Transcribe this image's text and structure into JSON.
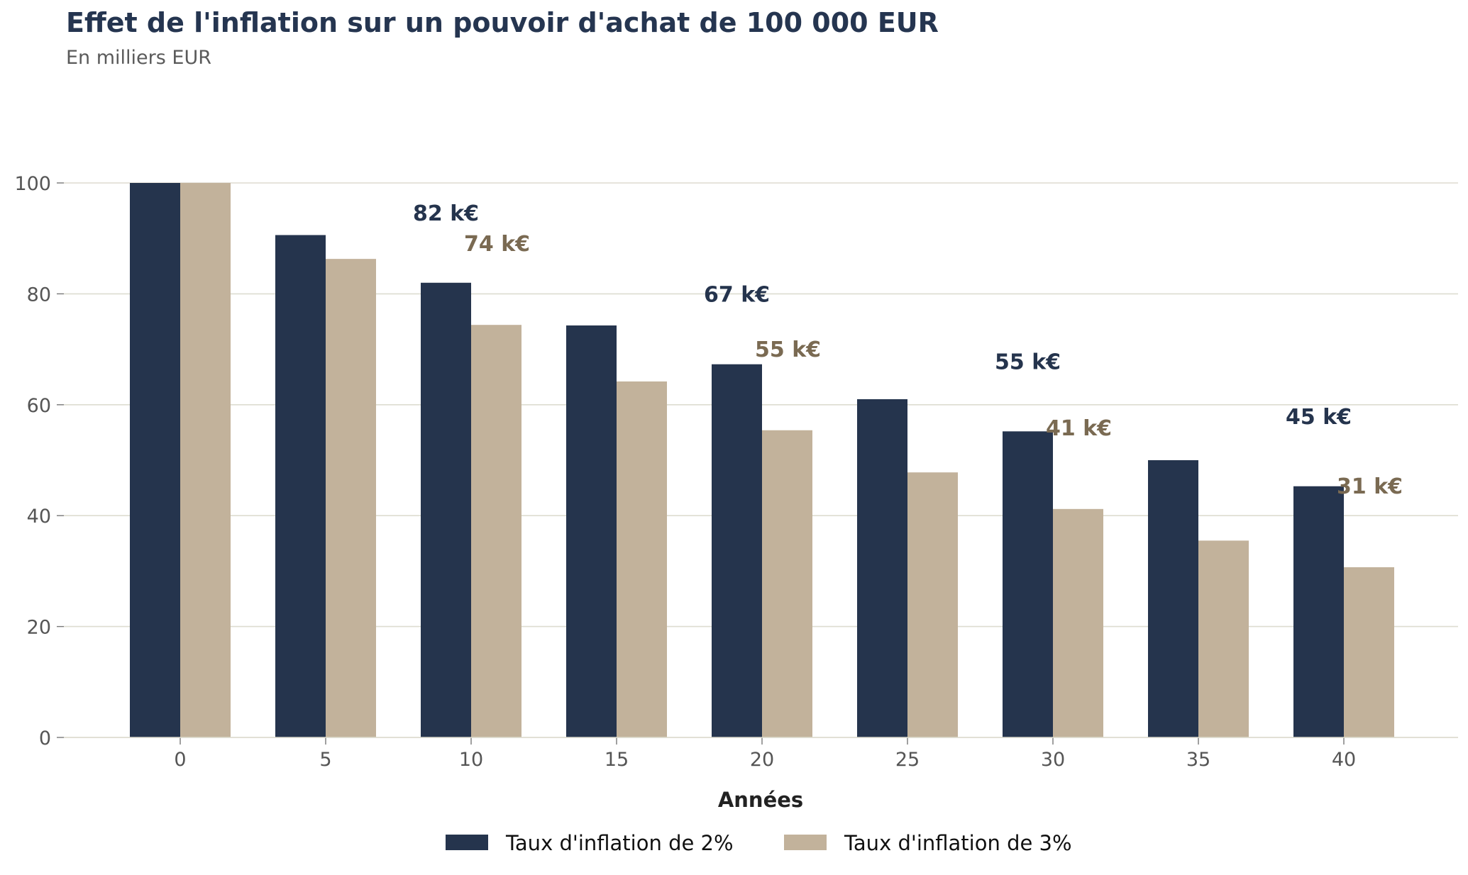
{
  "header": {
    "title": "Effet de l'inflation sur un pouvoir d'achat de 100 000 EUR",
    "subtitle": "En milliers EUR"
  },
  "chart_data": {
    "type": "bar",
    "title": "Effet de l'inflation sur un pouvoir d'achat de 100 000 EUR",
    "subtitle": "En milliers EUR",
    "xlabel": "Années",
    "ylabel": "",
    "categories": [
      "0",
      "5",
      "10",
      "15",
      "20",
      "25",
      "30",
      "35",
      "40"
    ],
    "ylim": [
      0,
      100
    ],
    "yticks": [
      0,
      20,
      40,
      60,
      80,
      100
    ],
    "grid": "horizontal",
    "legend": "bottom-center",
    "series": [
      {
        "name": "Taux d'inflation de 2%",
        "color": "#25344d",
        "values": [
          100,
          90.6,
          82.0,
          74.3,
          67.3,
          61.0,
          55.2,
          50.0,
          45.3
        ]
      },
      {
        "name": "Taux d'inflation de 3%",
        "color": "#c2b29b",
        "values": [
          100,
          86.3,
          74.4,
          64.2,
          55.4,
          47.8,
          41.2,
          35.5,
          30.7
        ]
      }
    ],
    "annotations": [
      {
        "category": "10",
        "series": 0,
        "text": "82 k€"
      },
      {
        "category": "10",
        "series": 1,
        "text": "74 k€"
      },
      {
        "category": "20",
        "series": 0,
        "text": "67 k€"
      },
      {
        "category": "20",
        "series": 1,
        "text": "55 k€"
      },
      {
        "category": "30",
        "series": 0,
        "text": "55 k€"
      },
      {
        "category": "30",
        "series": 1,
        "text": "41 k€"
      },
      {
        "category": "40",
        "series": 0,
        "text": "45 k€"
      },
      {
        "category": "40",
        "series": 1,
        "text": "31 k€"
      }
    ],
    "annotation_colors": [
      "#25344d",
      "#7a6a52"
    ],
    "grid_color": "#dddcd0"
  }
}
